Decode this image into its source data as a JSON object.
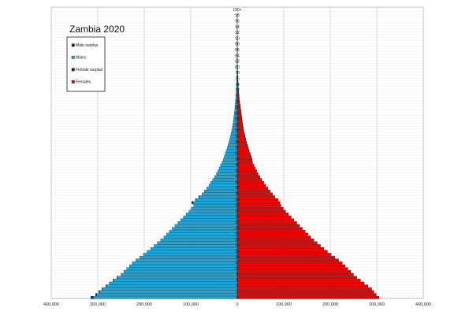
{
  "chart_data": {
    "type": "bar",
    "orientation": "horizontal-population-pyramid",
    "title": "Zambia 2020",
    "x_tick_labels": [
      "400,000",
      "300,000",
      "200,000",
      "100,000",
      "0",
      "100,000",
      "200,000",
      "300,000",
      "400,000"
    ],
    "x_tick_values": [
      -400000,
      -300000,
      -200000,
      -100000,
      0,
      100000,
      200000,
      300000,
      400000
    ],
    "xlim": [
      -400000,
      400000
    ],
    "age_labels": [
      "0",
      "2",
      "4",
      "6",
      "8",
      "10",
      "12",
      "14",
      "16",
      "18",
      "20",
      "22",
      "24",
      "26",
      "28",
      "30",
      "32",
      "34",
      "36",
      "38",
      "40",
      "42",
      "44",
      "46",
      "48",
      "50",
      "52",
      "54",
      "56",
      "58",
      "60",
      "62",
      "64",
      "66",
      "68",
      "70",
      "72",
      "74",
      "76",
      "78",
      "80",
      "82",
      "84",
      "86",
      "88",
      "90",
      "92",
      "94",
      "96",
      "98",
      "100+"
    ],
    "ages": [
      0,
      1,
      2,
      3,
      4,
      5,
      6,
      7,
      8,
      9,
      10,
      11,
      12,
      13,
      14,
      15,
      16,
      17,
      18,
      19,
      20,
      21,
      22,
      23,
      24,
      25,
      26,
      27,
      28,
      29,
      30,
      31,
      32,
      33,
      34,
      35,
      36,
      37,
      38,
      39,
      40,
      41,
      42,
      43,
      44,
      45,
      46,
      47,
      48,
      49,
      50,
      51,
      52,
      53,
      54,
      55,
      56,
      57,
      58,
      59,
      60,
      61,
      62,
      63,
      64,
      65,
      66,
      67,
      68,
      69,
      70,
      71,
      72,
      73,
      74,
      75,
      76,
      77,
      78,
      79,
      80,
      81,
      82,
      83,
      84,
      85,
      86,
      87,
      88,
      89,
      90,
      91,
      92,
      93,
      94,
      95,
      96,
      97,
      98,
      99,
      100
    ],
    "series": [
      {
        "name": "Males",
        "color": "#1aa7dc",
        "values": [
          310000,
          302000,
          296000,
          290000,
          282000,
          274000,
          266000,
          258000,
          250000,
          244000,
          238000,
          232000,
          226000,
          218000,
          210000,
          202000,
          194000,
          186000,
          179000,
          172000,
          165000,
          158000,
          152000,
          146000,
          140000,
          134000,
          128000,
          122000,
          116000,
          110000,
          104000,
          99000,
          94000,
          95000,
          89000,
          82000,
          76000,
          71000,
          66000,
          61000,
          57000,
          53000,
          49000,
          45000,
          42000,
          39000,
          36000,
          33000,
          30000,
          28000,
          26000,
          24000,
          22000,
          20000,
          18000,
          16500,
          15000,
          13500,
          12000,
          11000,
          10000,
          9000,
          8200,
          7400,
          6600,
          5800,
          5100,
          4500,
          4000,
          3500,
          3000,
          2600,
          2200,
          1900,
          1600,
          1400,
          1150,
          950,
          800,
          650,
          500,
          400,
          320,
          250,
          190,
          140,
          100,
          70,
          50,
          35,
          25,
          16,
          10,
          6,
          4,
          3,
          2,
          1,
          1,
          0,
          0
        ]
      },
      {
        "name": "Females",
        "color": "#ee0000",
        "values": [
          305000,
          299000,
          294000,
          289000,
          281000,
          273000,
          265000,
          257000,
          250000,
          244000,
          238000,
          232000,
          226000,
          218000,
          210000,
          202000,
          194000,
          186000,
          179000,
          172000,
          165000,
          158000,
          152000,
          146000,
          140000,
          134000,
          128000,
          122000,
          116000,
          110000,
          104000,
          99000,
          94000,
          92000,
          88000,
          81000,
          76000,
          71000,
          66000,
          61000,
          57000,
          53000,
          49000,
          45000,
          42000,
          39000,
          36000,
          33000,
          31000,
          29000,
          27000,
          25000,
          23000,
          21000,
          19000,
          17500,
          16000,
          14500,
          13000,
          12000,
          11000,
          10000,
          9200,
          8400,
          7600,
          6800,
          6000,
          5300,
          4600,
          4000,
          3500,
          3000,
          2600,
          2200,
          1900,
          1600,
          1300,
          1100,
          900,
          750,
          600,
          480,
          380,
          300,
          230,
          170,
          130,
          90,
          65,
          45,
          30,
          20,
          12,
          8,
          5,
          3,
          2,
          1,
          1,
          0,
          0
        ]
      },
      {
        "name": "Male surplus",
        "color": "#1a2a55",
        "values": [
          5000,
          3000,
          2000,
          1000,
          1000,
          1000,
          1000,
          1000,
          0,
          0,
          0,
          0,
          0,
          0,
          0,
          0,
          0,
          0,
          0,
          0,
          0,
          0,
          0,
          0,
          0,
          0,
          0,
          0,
          0,
          0,
          0,
          0,
          0,
          3000,
          1000,
          1000,
          0,
          0,
          0,
          0,
          0,
          0,
          0,
          0,
          0,
          0,
          0,
          0,
          0,
          0,
          0,
          0,
          0,
          0,
          0,
          0,
          0,
          0,
          0,
          0,
          0,
          0,
          0,
          0,
          0,
          0,
          0,
          0,
          0,
          0,
          0,
          0,
          0,
          0,
          0,
          0,
          0,
          0,
          0,
          0,
          0,
          0,
          0,
          0,
          0,
          0,
          0,
          0,
          0,
          0,
          0,
          0,
          0,
          0,
          0,
          0,
          0,
          0,
          0,
          0,
          0
        ]
      },
      {
        "name": "Female surplus",
        "color": "#7a0000",
        "values": [
          0,
          0,
          0,
          0,
          0,
          0,
          0,
          0,
          0,
          0,
          0,
          0,
          0,
          0,
          0,
          0,
          0,
          0,
          0,
          0,
          0,
          0,
          0,
          0,
          0,
          0,
          0,
          0,
          0,
          0,
          0,
          0,
          0,
          0,
          0,
          0,
          0,
          0,
          0,
          0,
          0,
          0,
          0,
          0,
          0,
          0,
          0,
          0,
          1000,
          1000,
          1000,
          1000,
          1000,
          1000,
          1000,
          1000,
          1000,
          1000,
          1000,
          1000,
          1000,
          1000,
          1000,
          1000,
          1000,
          1000,
          900,
          800,
          600,
          500,
          500,
          400,
          400,
          300,
          300,
          200,
          150,
          150,
          100,
          100,
          100,
          80,
          60,
          50,
          40,
          30,
          30,
          20,
          15,
          10,
          5,
          4,
          2,
          2,
          1,
          0,
          0,
          0,
          0,
          0,
          0
        ]
      }
    ],
    "legend": {
      "placement": "top-left",
      "entries": [
        {
          "label": "Male surplus",
          "color": "#1a2a55"
        },
        {
          "label": "Males",
          "color": "#1aa7dc"
        },
        {
          "label": "Female surplus",
          "color": "#7a0000"
        },
        {
          "label": "Females",
          "color": "#ee0000"
        }
      ]
    },
    "grid": true
  }
}
